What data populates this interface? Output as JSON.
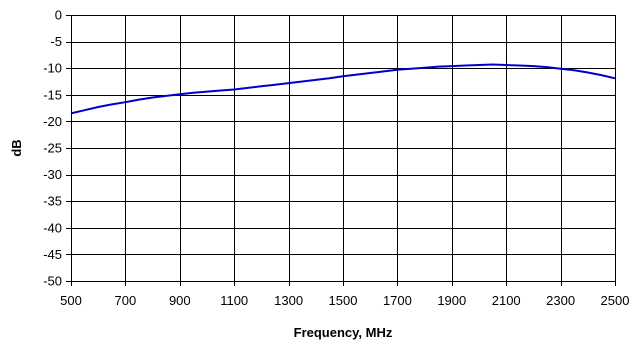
{
  "chart_data": {
    "type": "line",
    "title": "",
    "xlabel": "Frequency, MHz",
    "ylabel": "dB",
    "xlim": [
      500,
      2500
    ],
    "ylim": [
      -50,
      0
    ],
    "x_ticks": [
      500,
      700,
      900,
      1100,
      1300,
      1500,
      1700,
      1900,
      2100,
      2300,
      2500
    ],
    "y_ticks": [
      0,
      -5,
      -10,
      -15,
      -20,
      -25,
      -30,
      -35,
      -40,
      -45,
      -50
    ],
    "grid": true,
    "legend": "none",
    "series": [
      {
        "color": "#0000cc",
        "x": [
          500,
          550,
          600,
          650,
          700,
          750,
          800,
          850,
          900,
          950,
          1000,
          1050,
          1100,
          1150,
          1200,
          1250,
          1300,
          1350,
          1400,
          1450,
          1500,
          1550,
          1600,
          1650,
          1700,
          1750,
          1800,
          1850,
          1900,
          1950,
          2000,
          2050,
          2100,
          2150,
          2200,
          2250,
          2300,
          2350,
          2400,
          2450,
          2500
        ],
        "y": [
          -18.5,
          -17.9,
          -17.3,
          -16.8,
          -16.4,
          -15.9,
          -15.5,
          -15.2,
          -14.9,
          -14.6,
          -14.4,
          -14.2,
          -14.0,
          -13.7,
          -13.4,
          -13.1,
          -12.8,
          -12.5,
          -12.2,
          -11.9,
          -11.5,
          -11.2,
          -10.9,
          -10.6,
          -10.3,
          -10.1,
          -9.9,
          -9.7,
          -9.6,
          -9.5,
          -9.4,
          -9.3,
          -9.4,
          -9.5,
          -9.6,
          -9.8,
          -10.1,
          -10.4,
          -10.8,
          -11.3,
          -11.9
        ]
      }
    ]
  }
}
